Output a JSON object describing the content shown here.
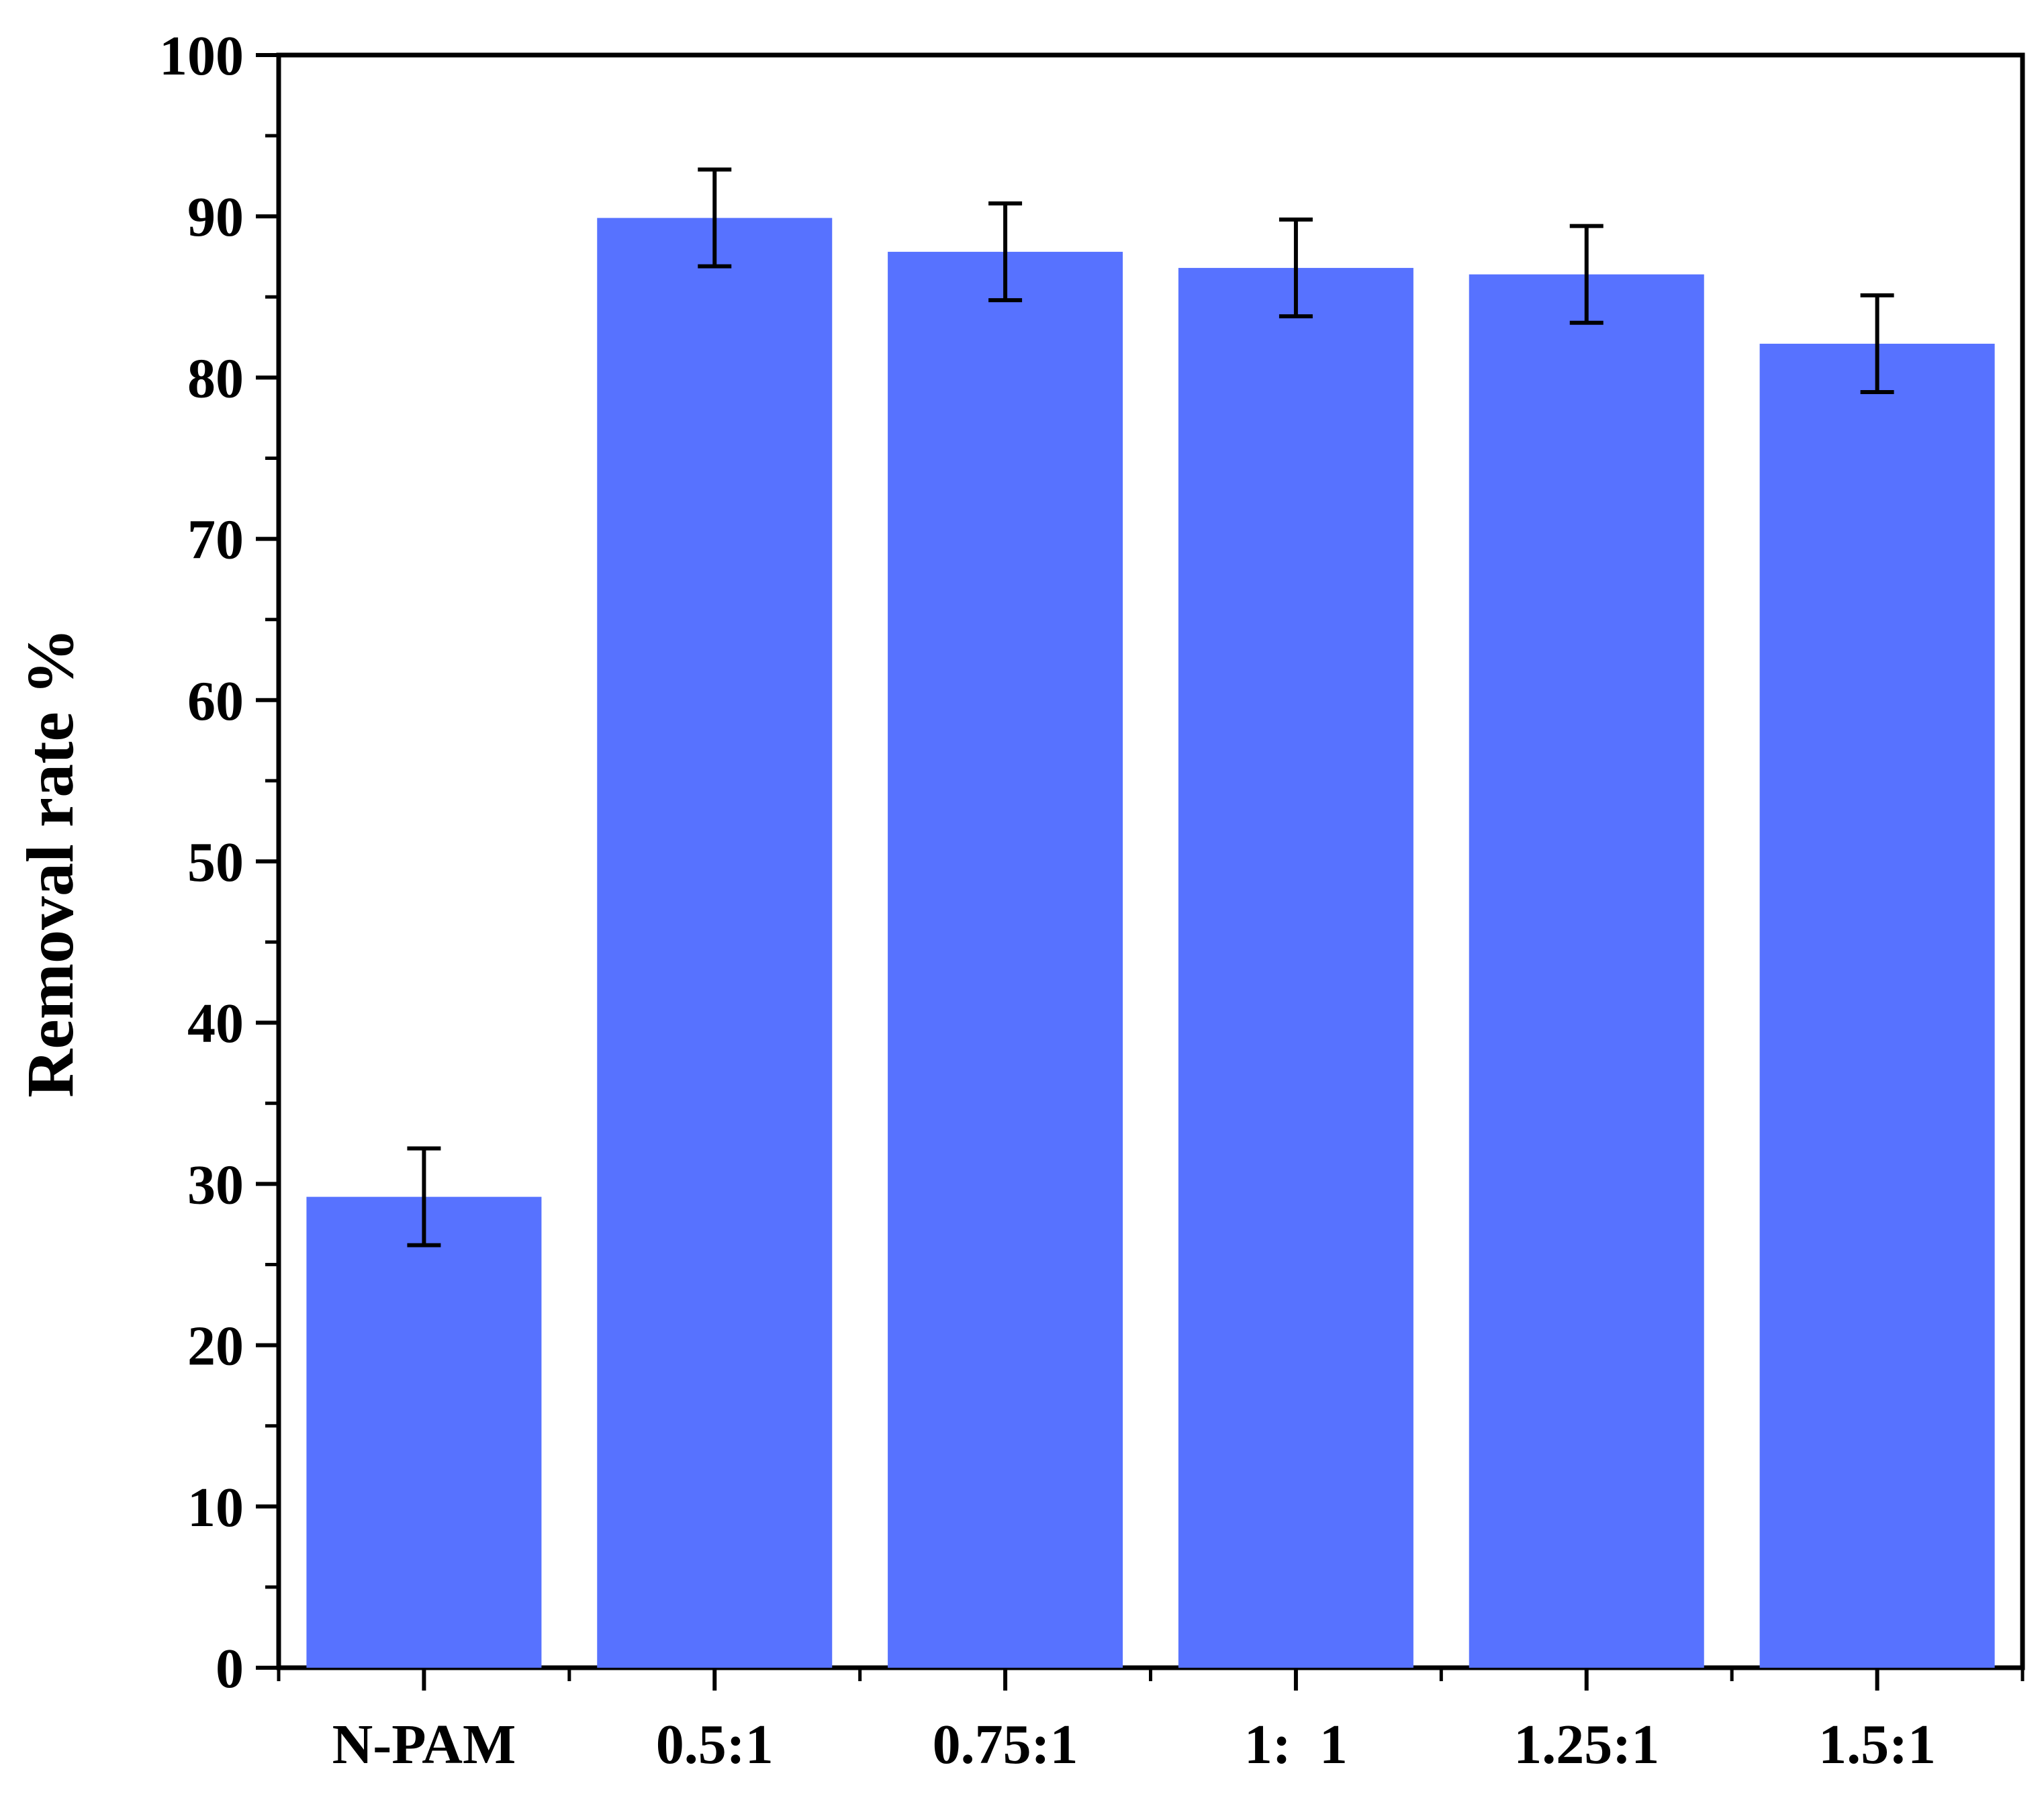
{
  "chart_data": {
    "type": "bar",
    "title": "",
    "xlabel": "",
    "ylabel": "Removal rate %",
    "categories": [
      "N-PAM",
      "0.5:1",
      "0.75:1",
      "1:  1",
      "1.25:1",
      "1.5:1"
    ],
    "values": [
      29.2,
      89.9,
      87.8,
      86.8,
      86.4,
      82.1
    ],
    "errors": [
      3.0,
      3.0,
      3.0,
      3.0,
      3.0,
      3.0
    ],
    "ylim": [
      0,
      100
    ],
    "yticks": [
      0,
      10,
      20,
      30,
      40,
      50,
      60,
      70,
      80,
      90,
      100
    ],
    "grid": false,
    "bar_color": "#5772FF",
    "error_color": "#000000"
  }
}
